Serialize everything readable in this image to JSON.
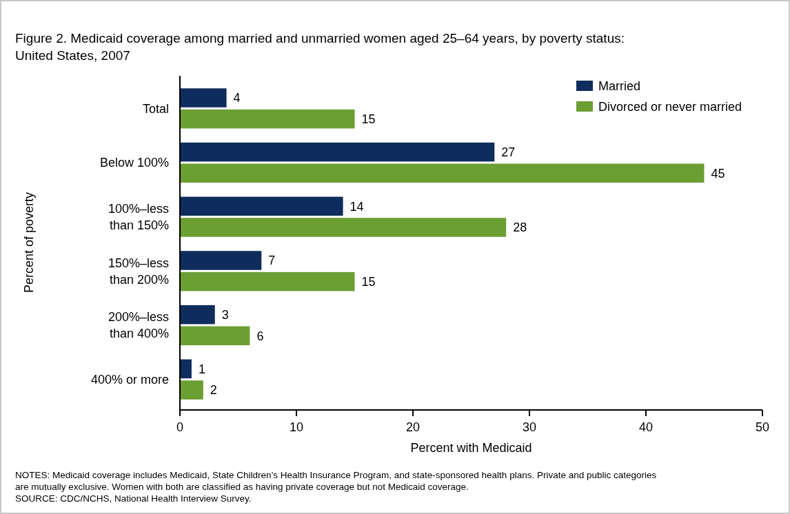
{
  "chart_data": {
    "type": "bar",
    "orientation": "horizontal",
    "title": "Figure 2. Medicaid coverage among married and unmarried women aged 25–64 years, by poverty status: United States, 2007",
    "xlabel": "Percent with Medicaid",
    "ylabel": "Percent of poverty",
    "categories": [
      "Total",
      "Below 100%",
      "100%–less than 150%",
      "150%–less than 200%",
      "200%–less than 400%",
      "400% or more"
    ],
    "series": [
      {
        "name": "Married",
        "color": "#0f2d5c",
        "values": [
          4,
          27,
          14,
          7,
          3,
          1
        ]
      },
      {
        "name": "Divorced or never married",
        "color": "#6b9e33",
        "values": [
          15,
          45,
          28,
          15,
          6,
          2
        ]
      }
    ],
    "xlim": [
      0,
      50
    ],
    "xticks": [
      0,
      10,
      20,
      30,
      40,
      50
    ],
    "data_labels": true,
    "legend": "top right",
    "grid": false,
    "annotations": [
      "NOTES: Medicaid coverage includes Medicaid, State Children’s Health Insurance Program, and state-sponsored health plans. Private and public categories are mutually exclusive. Women with both are classified as having private coverage but not Medicaid coverage.",
      "SOURCE: CDC/NCHS, National Health Interview Survey."
    ]
  }
}
